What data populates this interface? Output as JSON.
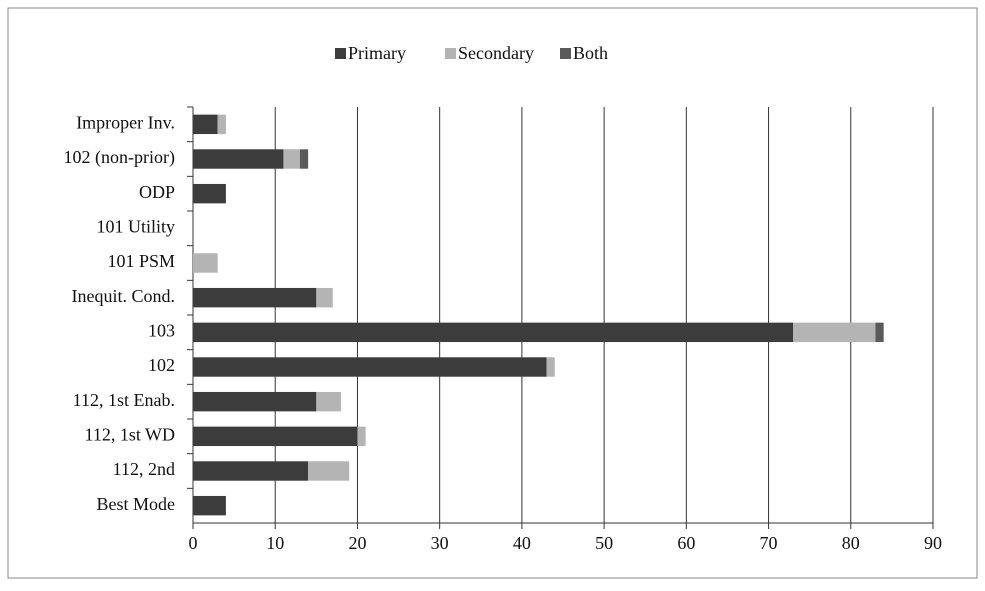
{
  "chart_data": {
    "type": "stacked-barh",
    "categories": [
      "Improper Inv.",
      "102 (non-prior)",
      "ODP",
      "101 Utility",
      "101 PSM",
      "Inequit. Cond.",
      "103",
      "102",
      "112, 1st Enab.",
      "112, 1st WD",
      "112, 2nd",
      "Best Mode"
    ],
    "series": [
      {
        "name": "Primary",
        "color": "#3c3c3c",
        "values": [
          3,
          11,
          4,
          0,
          0,
          15,
          73,
          43,
          15,
          20,
          14,
          4
        ]
      },
      {
        "name": "Secondary",
        "color": "#b4b4b4",
        "values": [
          1,
          2,
          0,
          0,
          3,
          2,
          10,
          1,
          3,
          1,
          5,
          0
        ]
      },
      {
        "name": "Both",
        "color": "#5a5a5a",
        "values": [
          0,
          1,
          0,
          0,
          0,
          0,
          1,
          0,
          0,
          0,
          0,
          0
        ]
      }
    ],
    "xlim": [
      0,
      90
    ],
    "xticks": [
      0,
      10,
      20,
      30,
      40,
      50,
      60,
      70,
      80,
      90
    ],
    "grid": true,
    "legend": "top"
  }
}
